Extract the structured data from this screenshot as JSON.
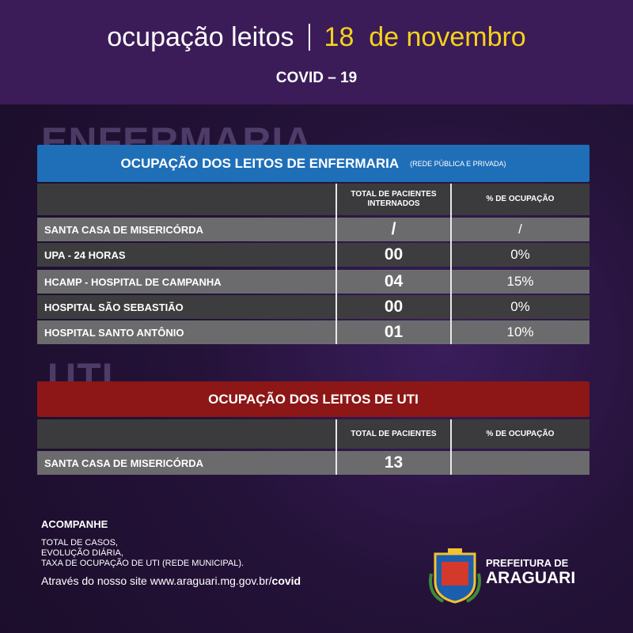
{
  "header": {
    "title": "ocupação leitos",
    "date": "18  de novembro",
    "subtitle": "COVID – 19"
  },
  "enfermaria": {
    "section": "ENFERMARIA",
    "title": "OCUPAÇÃO DOS LEITOS DE ENFERMARIA",
    "note": "(REDE PÚBLICA E PRIVADA)",
    "columns": [
      "TOTAL DE PACIENTES INTERNADOS",
      "% DE OCUPAÇÃO"
    ],
    "rows": [
      [
        "SANTA CASA DE MISERICÓRDA",
        "/",
        "/"
      ],
      [
        "UPA - 24 HORAS",
        "00",
        "0%"
      ],
      [
        "HCAMP - HOSPITAL DE CAMPANHA",
        "04",
        "15%"
      ],
      [
        "HOSPITAL SÃO SEBASTIÃO",
        "00",
        "0%"
      ],
      [
        "HOSPITAL SANTO ANTÔNIO",
        "01",
        "10%"
      ]
    ]
  },
  "uti": {
    "section": "UTI",
    "title": "OCUPAÇÃO DOS LEITOS DE UTI",
    "columns": [
      "TOTAL DE PACIENTES",
      "% DE OCUPAÇÃO"
    ],
    "rows": [
      [
        "SANTA CASA DE MISERICÓRDA",
        "13"
      ]
    ]
  },
  "footer": {
    "heading": "ACOMPANHE",
    "lines": [
      "TOTAL DE CASOS,",
      "EVOLUÇÃO DIÁRIA,",
      "TAXA DE OCUPAÇÃO DE UTI (REDE MUNICIPAL)."
    ],
    "site_prefix": "Através do nosso site www.araguari.mg.gov.br/",
    "site_bold": "covid"
  },
  "logo": {
    "line1": "PREFEITURA DE",
    "line2": "ARAGUARI"
  }
}
